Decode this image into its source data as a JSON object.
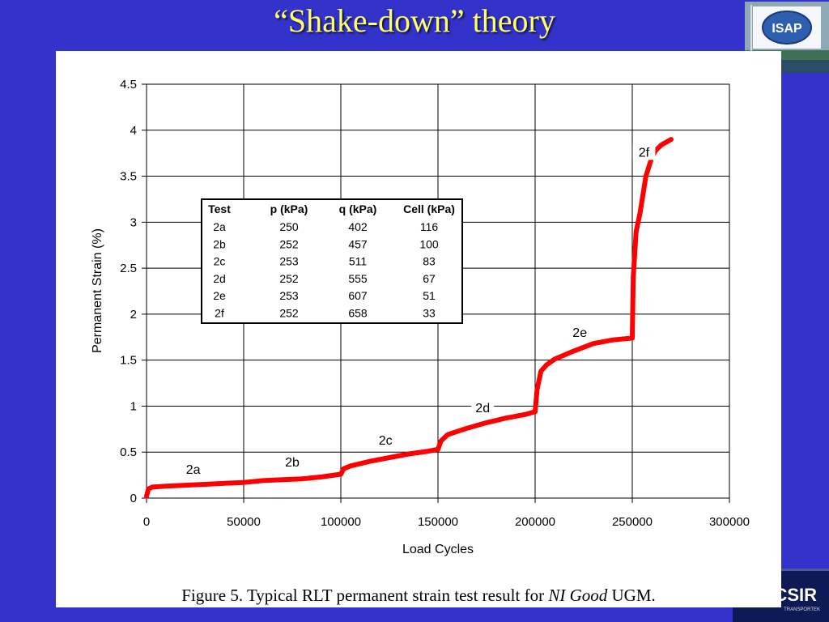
{
  "slide": {
    "title": "“Shake-down” theory",
    "logo_text": "ISAP",
    "footer_logo_text": "CSIR",
    "footer_logo_sub": "TRANSPORTEK"
  },
  "caption": {
    "prefix": "Figure 5.  Typical RLT permanent strain test result for ",
    "italic": "NI Good",
    "suffix": " UGM."
  },
  "chart_data": {
    "type": "line",
    "title": "",
    "xlabel": "Load Cycles",
    "ylabel": "Permanent Strain (%)",
    "xlim": [
      0,
      300000
    ],
    "ylim": [
      0,
      4.5
    ],
    "xticks": [
      0,
      50000,
      100000,
      150000,
      200000,
      250000,
      300000
    ],
    "xtick_labels": [
      "0",
      "50000",
      "100000",
      "150000",
      "200000",
      "250000",
      "300000"
    ],
    "yticks": [
      0,
      0.5,
      1,
      1.5,
      2,
      2.5,
      3,
      3.5,
      4,
      4.5
    ],
    "ytick_labels": [
      "0",
      "0.5",
      "1",
      "1.5",
      "2",
      "2.5",
      "3",
      "3.5",
      "4",
      "4.5"
    ],
    "grid": true,
    "line_color": "#ff0000",
    "series": [
      {
        "name": "2a",
        "x": [
          0,
          1000,
          3000,
          10000,
          20000,
          30000,
          40000,
          50000
        ],
        "y": [
          0.02,
          0.1,
          0.12,
          0.13,
          0.14,
          0.15,
          0.16,
          0.17
        ]
      },
      {
        "name": "2b",
        "x": [
          50000,
          60000,
          70000,
          80000,
          90000,
          100000
        ],
        "y": [
          0.17,
          0.19,
          0.2,
          0.21,
          0.23,
          0.26
        ]
      },
      {
        "name": "2c",
        "x": [
          100000,
          101500,
          105000,
          115000,
          125000,
          135000,
          145000,
          150000
        ],
        "y": [
          0.26,
          0.32,
          0.35,
          0.4,
          0.44,
          0.48,
          0.51,
          0.53
        ]
      },
      {
        "name": "2d",
        "x": [
          150000,
          151500,
          155000,
          165000,
          175000,
          185000,
          195000,
          200000
        ],
        "y": [
          0.53,
          0.62,
          0.69,
          0.76,
          0.82,
          0.87,
          0.91,
          0.94
        ]
      },
      {
        "name": "2e",
        "x": [
          200000,
          201000,
          203000,
          206000,
          210000,
          220000,
          230000,
          240000,
          250000
        ],
        "y": [
          0.94,
          1.18,
          1.38,
          1.45,
          1.51,
          1.6,
          1.68,
          1.72,
          1.74
        ]
      },
      {
        "name": "2f",
        "x": [
          250000,
          250500,
          252000,
          254000,
          257000,
          260000,
          262000,
          265000,
          270000
        ],
        "y": [
          1.74,
          2.4,
          2.9,
          3.1,
          3.5,
          3.7,
          3.78,
          3.84,
          3.9
        ]
      }
    ],
    "annotations": [
      {
        "text": "2a",
        "x": 24000,
        "y": 0.28
      },
      {
        "text": "2b",
        "x": 75000,
        "y": 0.36
      },
      {
        "text": "2c",
        "x": 123000,
        "y": 0.6
      },
      {
        "text": "2d",
        "x": 173000,
        "y": 0.95
      },
      {
        "text": "2e",
        "x": 223000,
        "y": 1.77
      },
      {
        "text": "2f",
        "x": 256000,
        "y": 3.73
      }
    ],
    "table": {
      "headers": [
        "Test",
        "p (kPa)",
        "q (kPa)",
        "Cell (kPa)"
      ],
      "rows": [
        [
          "2a",
          "250",
          "402",
          "116"
        ],
        [
          "2b",
          "252",
          "457",
          "100"
        ],
        [
          "2c",
          "253",
          "511",
          "83"
        ],
        [
          "2d",
          "252",
          "555",
          "67"
        ],
        [
          "2e",
          "253",
          "607",
          "51"
        ],
        [
          "2f",
          "252",
          "658",
          "33"
        ]
      ]
    }
  }
}
